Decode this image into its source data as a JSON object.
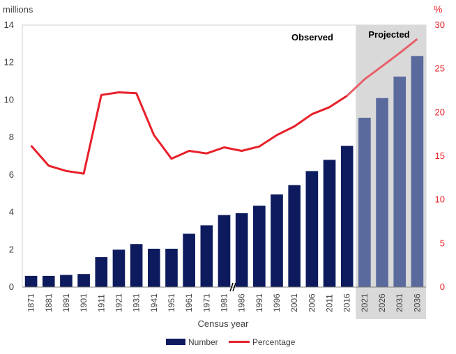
{
  "chart_data": {
    "type": "bar",
    "xlabel": "Census year",
    "ylabel": "millions",
    "y2label": "%",
    "ylim": [
      0,
      14
    ],
    "y2lim": [
      0,
      30
    ],
    "yticks": [
      0,
      2,
      4,
      6,
      8,
      10,
      12,
      14
    ],
    "y2ticks": [
      0,
      5,
      10,
      15,
      20,
      25,
      30
    ],
    "categories": [
      "1871",
      "1881",
      "1891",
      "1901",
      "1911",
      "1921",
      "1931",
      "1941",
      "1951",
      "1961",
      "1971",
      "1981",
      "1986",
      "1991",
      "1996",
      "2001",
      "2006",
      "2011",
      "2016",
      "2021",
      "2026",
      "2031",
      "2036"
    ],
    "axis_break_after": "1981",
    "projected_from": "2021",
    "regions": [
      {
        "label": "Observed"
      },
      {
        "label": "Projected"
      }
    ],
    "series": [
      {
        "name": "Number",
        "type": "bar",
        "axis": "left",
        "values": [
          0.6,
          0.6,
          0.65,
          0.7,
          1.6,
          2.0,
          2.3,
          2.05,
          2.05,
          2.85,
          3.3,
          3.85,
          3.95,
          4.35,
          4.95,
          5.45,
          6.2,
          6.8,
          7.55,
          9.05,
          10.1,
          11.25,
          12.35
        ],
        "color": "#0d1b5e",
        "projected_color": "#5a6a9c"
      },
      {
        "name": "Percentage",
        "type": "line",
        "axis": "right",
        "values": [
          16.2,
          13.9,
          13.3,
          13.0,
          22.0,
          22.3,
          22.2,
          17.4,
          14.7,
          15.6,
          15.3,
          16.0,
          15.6,
          16.1,
          17.4,
          18.4,
          19.8,
          20.6,
          21.9,
          23.8,
          25.3,
          26.8,
          28.4
        ],
        "color": "#e8202a"
      }
    ],
    "legend": [
      "Number",
      "Percentage"
    ],
    "legend_position": "bottom",
    "grid": false
  }
}
